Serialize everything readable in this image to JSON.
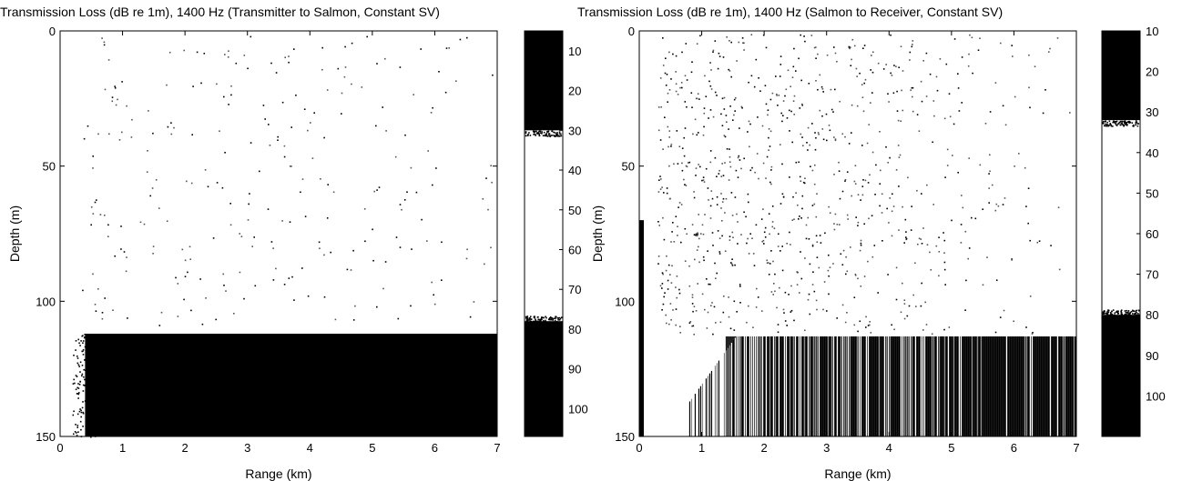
{
  "chart_data": [
    {
      "type": "heatmap",
      "title": "Transmission Loss (dB re 1m), 1400 Hz (Transmitter to Salmon, Constant SV)",
      "xlabel": "Range (km)",
      "ylabel": "Depth (m)",
      "xlim": [
        0,
        7
      ],
      "ylim": [
        0,
        150
      ],
      "y_reversed": true,
      "x_ticks": [
        "0",
        "1",
        "2",
        "3",
        "4",
        "5",
        "6",
        "7"
      ],
      "y_ticks": [
        "0",
        "50",
        "100",
        "150"
      ],
      "regions": [
        {
          "description": "water column",
          "depth_range": [
            0,
            112
          ],
          "range_km": [
            0,
            7
          ],
          "level": "low loss (white)"
        },
        {
          "description": "bottom layer",
          "depth_range": [
            112,
            150
          ],
          "range_km": [
            0.4,
            7
          ],
          "level": "high loss (black)"
        }
      ],
      "colorbar": {
        "ticks": [
          "10",
          "20",
          "30",
          "40",
          "50",
          "60",
          "70",
          "80",
          "90",
          "100"
        ],
        "lim": [
          5,
          107
        ],
        "dark_below": 30,
        "dark_above": 78
      }
    },
    {
      "type": "heatmap",
      "title": "Transmission Loss (dB re 1m), 1400 Hz (Salmon to Receiver, Constant SV)",
      "xlabel": "Range (km)",
      "ylabel": "Depth (m)",
      "xlim": [
        0,
        7
      ],
      "ylim": [
        0,
        150
      ],
      "y_reversed": true,
      "x_ticks": [
        "0",
        "1",
        "2",
        "3",
        "4",
        "5",
        "6",
        "7"
      ],
      "y_ticks": [
        "0",
        "50",
        "100",
        "150"
      ],
      "regions": [
        {
          "description": "water column",
          "depth_range": [
            0,
            113
          ],
          "range_km": [
            0,
            7
          ],
          "level": "low loss (white, speckled)"
        },
        {
          "description": "bottom layer",
          "depth_range": [
            113,
            150
          ],
          "range_km": [
            0.8,
            7
          ],
          "level": "high loss (dark, streaked)"
        }
      ],
      "colorbar": {
        "ticks": [
          "10",
          "20",
          "30",
          "40",
          "50",
          "60",
          "70",
          "80",
          "90",
          "100"
        ],
        "lim": [
          10,
          110
        ],
        "dark_below": 32,
        "dark_above": 80
      }
    }
  ]
}
